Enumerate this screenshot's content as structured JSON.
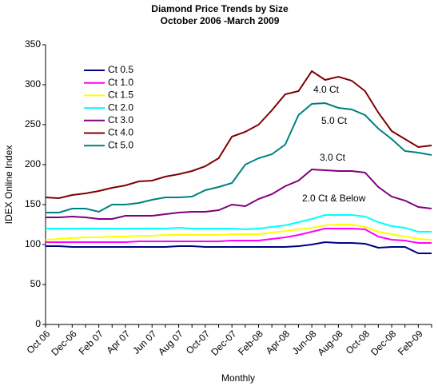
{
  "chart_data": {
    "type": "line",
    "title": "Diamond Price Trends by Size",
    "subtitle": "October 2006 -March 2009",
    "y_label": "IDEX Online Index",
    "x_label": "Monthly",
    "categories": [
      "Oct 06",
      null,
      "Dec-06",
      null,
      "Feb 07",
      null,
      "Apr 07",
      null,
      "Jun 07",
      null,
      "Aug 07",
      null,
      "Oct-07",
      null,
      "Dec-07",
      null,
      "Feb-08",
      null,
      "Apr-08",
      null,
      "Jun-08",
      null,
      "Aug-08",
      null,
      "Oct-08",
      null,
      "Dec-08",
      null,
      "Feb-09",
      null
    ],
    "series": [
      {
        "name": "Ct 0.5",
        "color": "#000080",
        "values": [
          98,
          98,
          97,
          97,
          97,
          97,
          97,
          97,
          97,
          97,
          98,
          98,
          97,
          97,
          97,
          97,
          97,
          97,
          97,
          98,
          100,
          103,
          102,
          102,
          101,
          96,
          97,
          97,
          89,
          89
        ]
      },
      {
        "name": "Ct 1.0",
        "color": "#ff00ff",
        "values": [
          103,
          103,
          103,
          103,
          103,
          103,
          103,
          104,
          104,
          104,
          104,
          104,
          104,
          104,
          105,
          105,
          105,
          107,
          109,
          112,
          116,
          120,
          120,
          120,
          119,
          110,
          106,
          105,
          102,
          102
        ]
      },
      {
        "name": "Ct 1.5",
        "color": "#ffff00",
        "values": [
          106,
          107,
          108,
          109,
          109,
          110,
          110,
          111,
          111,
          112,
          112,
          112,
          112,
          112,
          113,
          113,
          113,
          115,
          117,
          119,
          121,
          124,
          125,
          125,
          122,
          116,
          113,
          110,
          107,
          106
        ]
      },
      {
        "name": "Ct 2.0",
        "color": "#00ffff",
        "values": [
          120,
          120,
          120,
          120,
          120,
          120,
          120,
          120,
          120,
          120,
          121,
          120,
          120,
          120,
          120,
          119,
          120,
          122,
          124,
          128,
          132,
          137,
          137,
          137,
          135,
          128,
          123,
          121,
          116,
          116
        ]
      },
      {
        "name": "Ct 3.0",
        "color": "#800080",
        "values": [
          134,
          134,
          135,
          134,
          132,
          132,
          136,
          136,
          136,
          138,
          140,
          141,
          141,
          143,
          150,
          148,
          157,
          163,
          173,
          180,
          194,
          193,
          192,
          192,
          190,
          172,
          160,
          155,
          147,
          145
        ]
      },
      {
        "name": "Ct 4.0",
        "color": "#800000",
        "values": [
          159,
          158,
          162,
          164,
          167,
          171,
          174,
          179,
          180,
          185,
          188,
          192,
          198,
          208,
          235,
          241,
          250,
          268,
          288,
          292,
          317,
          306,
          310,
          305,
          292,
          265,
          242,
          232,
          222,
          224
        ]
      },
      {
        "name": "Ct 5.0",
        "color": "#008080",
        "values": [
          140,
          140,
          145,
          145,
          141,
          150,
          150,
          152,
          156,
          159,
          159,
          160,
          168,
          172,
          177,
          200,
          208,
          213,
          225,
          262,
          276,
          277,
          271,
          269,
          262,
          245,
          232,
          217,
          215,
          212
        ]
      }
    ],
    "annotations": [
      "4.0 Ct",
      "5.0 Ct",
      "3.0 Ct",
      "2.0 Ct & Below"
    ],
    "ylim": [
      0,
      350
    ],
    "yticks": [
      0,
      50,
      100,
      150,
      200,
      250,
      300,
      350
    ],
    "legend": "upper left"
  }
}
